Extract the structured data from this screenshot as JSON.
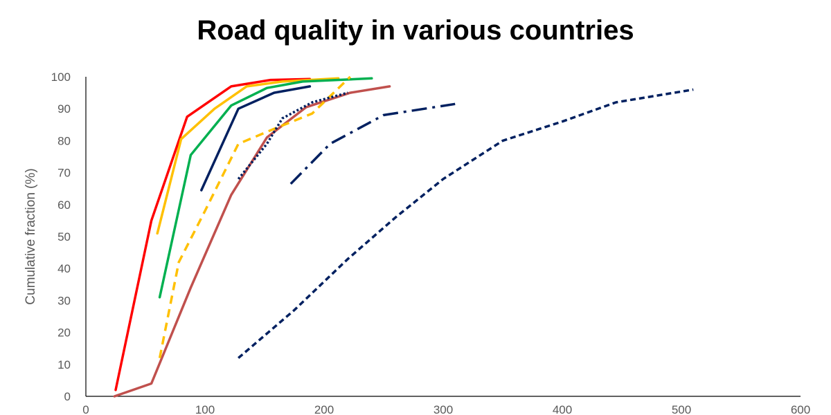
{
  "chart_data": {
    "type": "line",
    "title": "Road quality in various countries",
    "xlabel": "",
    "ylabel": "Cumulative  fraction (%)",
    "xlim": [
      0,
      600
    ],
    "ylim": [
      0,
      100
    ],
    "x_ticks": [
      "0",
      "100",
      "200",
      "300",
      "400",
      "500",
      "600"
    ],
    "y_ticks": [
      "0",
      "10",
      "20",
      "30",
      "40",
      "50",
      "60",
      "70",
      "80",
      "90",
      "100"
    ],
    "grid": false,
    "legend": "none",
    "series": [
      {
        "color": "#FF0000",
        "style": "solid",
        "x": [
          25,
          55,
          85,
          122,
          155,
          188
        ],
        "y": [
          2,
          55,
          87.5,
          97,
          99,
          99.3
        ]
      },
      {
        "color": "#FFC000",
        "style": "solid",
        "x": [
          60,
          80,
          108,
          135,
          165,
          212
        ],
        "y": [
          51,
          80.5,
          90,
          97,
          98.5,
          99.5
        ]
      },
      {
        "color": "#00B050",
        "style": "solid",
        "x": [
          62,
          88,
          122,
          152,
          182,
          240
        ],
        "y": [
          31,
          75.5,
          91,
          96.5,
          98.5,
          99.5
        ]
      },
      {
        "color": "#002060",
        "style": "solid",
        "x": [
          97,
          128,
          158,
          188
        ],
        "y": [
          64.5,
          90,
          95,
          97
        ]
      },
      {
        "color": "#C0504D",
        "style": "solid",
        "x": [
          24,
          55,
          88,
          122,
          152,
          185,
          222,
          255
        ],
        "y": [
          0,
          4,
          34,
          63,
          81,
          90.5,
          95,
          97
        ]
      },
      {
        "color": "#FFC000",
        "style": "dashed",
        "x": [
          62,
          78,
          100,
          128,
          160,
          190,
          222
        ],
        "y": [
          12,
          42,
          58,
          79,
          84,
          88.5,
          100
        ]
      },
      {
        "color": "#002060",
        "style": "dotted",
        "x": [
          128,
          152,
          165,
          190,
          220
        ],
        "y": [
          68,
          79,
          87,
          92,
          95
        ]
      },
      {
        "color": "#002060",
        "style": "dashdot",
        "x": [
          172,
          205,
          250,
          310
        ],
        "y": [
          66.5,
          79,
          88,
          91.5
        ]
      },
      {
        "color": "#002060",
        "style": "shortdash",
        "x": [
          128,
          175,
          220,
          260,
          300,
          350,
          400,
          445,
          510
        ],
        "y": [
          12,
          27,
          43,
          56,
          68,
          80,
          86,
          92,
          96
        ]
      }
    ]
  }
}
